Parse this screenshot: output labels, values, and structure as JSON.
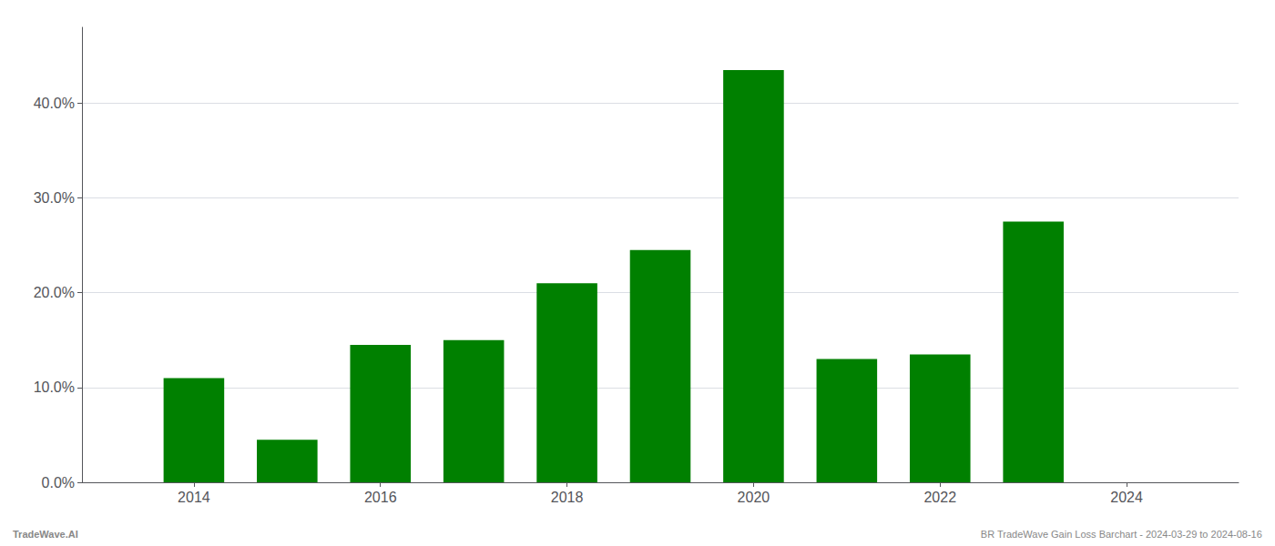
{
  "chart_data": {
    "type": "bar",
    "x": [
      2014,
      2015,
      2016,
      2017,
      2018,
      2019,
      2020,
      2021,
      2022,
      2023
    ],
    "values": [
      0.11,
      0.045,
      0.145,
      0.15,
      0.21,
      0.245,
      0.435,
      0.13,
      0.135,
      0.275
    ],
    "color": "#008000",
    "xlim": [
      2012.8,
      2025.2
    ],
    "xticks": [
      2014,
      2016,
      2018,
      2020,
      2022,
      2024
    ],
    "ylim": [
      0,
      0.48
    ],
    "yticks": [
      {
        "value": 0.0,
        "label": "0.0%"
      },
      {
        "value": 0.1,
        "label": "10.0%"
      },
      {
        "value": 0.2,
        "label": "20.0%"
      },
      {
        "value": 0.3,
        "label": "30.0%"
      },
      {
        "value": 0.4,
        "label": "40.0%"
      }
    ],
    "grid": true,
    "annotations": [
      "TradeWave.AI",
      "BR TradeWave Gain Loss Barchart - 2024-03-29 to 2024-08-16"
    ]
  }
}
